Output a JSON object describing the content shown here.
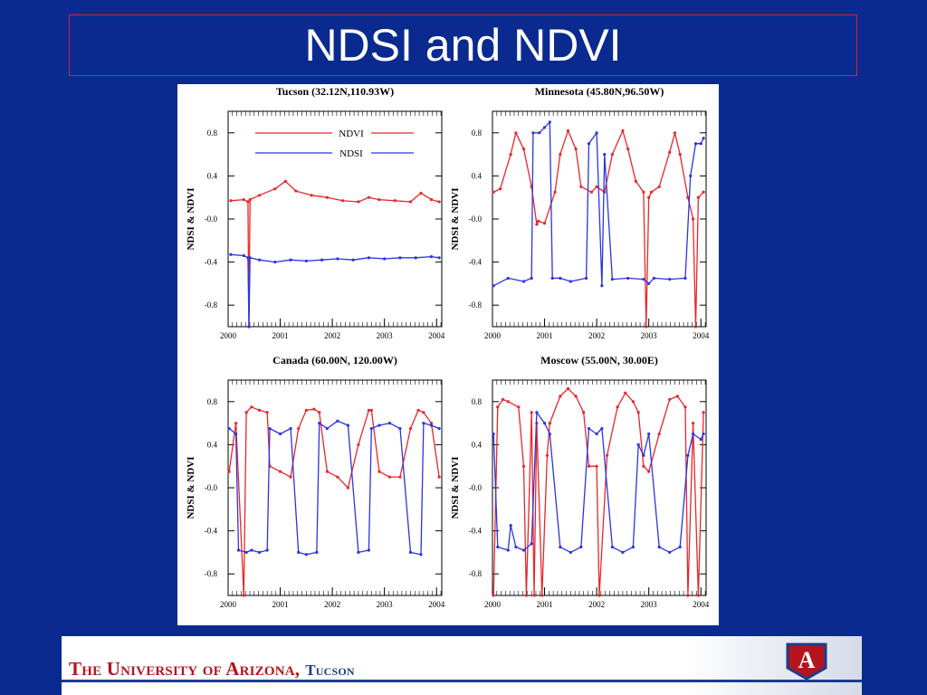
{
  "slide": {
    "title": "NDSI and NDVI",
    "footer_university": "The University of Arizona,",
    "footer_campus": "Tucson",
    "logo_letter": "A"
  },
  "colors": {
    "background": "#0b2a8f",
    "ndvi": "#e8262a",
    "ndsi": "#2a35e0",
    "title_border": "#c8283c",
    "footer_red": "#b4141e",
    "footer_blue": "#1e3c8c"
  },
  "chart_data": [
    {
      "type": "line",
      "title": "Tucson (32.12N,110.93W)",
      "ylabel": "NDSI & NDVI",
      "xlim": [
        2000.0,
        2004.1
      ],
      "ylim": [
        -1.0,
        1.0
      ],
      "yticks": [
        "0.8",
        "0.4",
        "-0.0",
        "-0.4",
        "-0.8"
      ],
      "ytick_values": [
        0.8,
        0.4,
        0.0,
        -0.4,
        -0.8
      ],
      "xticks": [
        "2000",
        "2001",
        "2002",
        "2003",
        "2004"
      ],
      "xtick_values": [
        2000,
        2001,
        2002,
        2003,
        2004
      ],
      "legend": [
        "NDVI",
        "NDSI"
      ],
      "series": [
        {
          "name": "NDVI",
          "x": [
            2000.05,
            2000.3,
            2000.38,
            2000.4,
            2000.42,
            2000.6,
            2000.9,
            2001.1,
            2001.3,
            2001.6,
            2001.9,
            2002.2,
            2002.5,
            2002.7,
            2002.9,
            2003.2,
            2003.5,
            2003.7,
            2003.9,
            2004.05
          ],
          "y": [
            0.17,
            0.18,
            0.16,
            -1.0,
            0.18,
            0.22,
            0.28,
            0.35,
            0.26,
            0.22,
            0.2,
            0.17,
            0.16,
            0.2,
            0.18,
            0.17,
            0.16,
            0.24,
            0.18,
            0.16
          ]
        },
        {
          "name": "NDSI",
          "x": [
            2000.05,
            2000.3,
            2000.38,
            2000.4,
            2000.42,
            2000.6,
            2000.9,
            2001.2,
            2001.5,
            2001.8,
            2002.1,
            2002.4,
            2002.7,
            2003.0,
            2003.3,
            2003.6,
            2003.9,
            2004.05
          ],
          "y": [
            -0.33,
            -0.34,
            -0.36,
            -1.0,
            -0.36,
            -0.38,
            -0.4,
            -0.38,
            -0.39,
            -0.38,
            -0.37,
            -0.38,
            -0.36,
            -0.37,
            -0.36,
            -0.36,
            -0.35,
            -0.36
          ]
        }
      ]
    },
    {
      "type": "line",
      "title": "Minnesota (45.80N,96.50W)",
      "ylabel": "NDSI & NDVI",
      "xlim": [
        2000.0,
        2004.1
      ],
      "ylim": [
        -1.0,
        1.0
      ],
      "yticks": [
        "0.8",
        "0.4",
        "-0.0",
        "-0.4",
        "-0.8"
      ],
      "ytick_values": [
        0.8,
        0.4,
        0.0,
        -0.4,
        -0.8
      ],
      "xticks": [
        "2000",
        "2001",
        "2002",
        "2003",
        "2004"
      ],
      "xtick_values": [
        2000,
        2001,
        2002,
        2003,
        2004
      ],
      "series": [
        {
          "name": "NDVI",
          "x": [
            2000.02,
            2000.15,
            2000.35,
            2000.45,
            2000.6,
            2000.75,
            2000.85,
            2000.88,
            2001.0,
            2001.2,
            2001.3,
            2001.45,
            2001.6,
            2001.7,
            2001.9,
            2002.0,
            2002.15,
            2002.3,
            2002.5,
            2002.6,
            2002.75,
            2002.9,
            2002.95,
            2003.0,
            2003.05,
            2003.2,
            2003.4,
            2003.5,
            2003.6,
            2003.75,
            2003.85,
            2003.9,
            2003.95,
            2004.05
          ],
          "y": [
            0.25,
            0.28,
            0.6,
            0.8,
            0.65,
            0.3,
            -0.05,
            -0.02,
            -0.04,
            0.25,
            0.6,
            0.82,
            0.65,
            0.3,
            0.25,
            0.3,
            0.25,
            0.6,
            0.82,
            0.65,
            0.35,
            0.25,
            -1.0,
            0.2,
            0.25,
            0.3,
            0.62,
            0.8,
            0.6,
            0.2,
            0.0,
            -1.0,
            0.2,
            0.25
          ]
        },
        {
          "name": "NDSI",
          "x": [
            2000.02,
            2000.3,
            2000.6,
            2000.75,
            2000.78,
            2000.9,
            2001.0,
            2001.1,
            2001.15,
            2001.3,
            2001.5,
            2001.8,
            2001.85,
            2002.0,
            2002.1,
            2002.15,
            2002.3,
            2002.6,
            2002.9,
            2003.0,
            2003.1,
            2003.4,
            2003.7,
            2003.8,
            2003.9,
            2004.0,
            2004.05
          ],
          "y": [
            -0.62,
            -0.55,
            -0.58,
            -0.55,
            0.8,
            0.8,
            0.85,
            0.9,
            -0.55,
            -0.55,
            -0.58,
            -0.55,
            0.7,
            0.8,
            -0.62,
            0.6,
            -0.56,
            -0.55,
            -0.56,
            -0.6,
            -0.55,
            -0.56,
            -0.55,
            0.4,
            0.7,
            0.7,
            0.75
          ]
        }
      ]
    },
    {
      "type": "line",
      "title": "Canada (60.00N, 120.00W)",
      "ylabel": "NDSI & NDVI",
      "xlim": [
        2000.0,
        2004.1
      ],
      "ylim": [
        -1.0,
        1.0
      ],
      "yticks": [
        "0.8",
        "0.4",
        "-0.0",
        "-0.4",
        "-0.8"
      ],
      "ytick_values": [
        0.8,
        0.4,
        0.0,
        -0.4,
        -0.8
      ],
      "xticks": [
        "2000",
        "2001",
        "2002",
        "2003",
        "2004"
      ],
      "xtick_values": [
        2000,
        2001,
        2002,
        2003,
        2004
      ],
      "series": [
        {
          "name": "NDVI",
          "x": [
            2000.02,
            2000.15,
            2000.3,
            2000.35,
            2000.45,
            2000.6,
            2000.75,
            2000.8,
            2001.0,
            2001.2,
            2001.35,
            2001.5,
            2001.65,
            2001.75,
            2001.9,
            2002.1,
            2002.3,
            2002.5,
            2002.7,
            2002.75,
            2002.9,
            2003.1,
            2003.3,
            2003.5,
            2003.65,
            2003.75,
            2003.9,
            2004.05
          ],
          "y": [
            0.15,
            0.6,
            -1.0,
            0.7,
            0.75,
            0.72,
            0.7,
            0.2,
            0.15,
            0.1,
            0.55,
            0.72,
            0.73,
            0.7,
            0.15,
            0.1,
            0.0,
            0.4,
            0.72,
            0.72,
            0.15,
            0.1,
            0.1,
            0.55,
            0.72,
            0.7,
            0.6,
            0.1
          ]
        },
        {
          "name": "NDSI",
          "x": [
            2000.02,
            2000.15,
            2000.2,
            2000.35,
            2000.45,
            2000.6,
            2000.75,
            2000.8,
            2001.0,
            2001.2,
            2001.35,
            2001.5,
            2001.7,
            2001.75,
            2001.9,
            2002.1,
            2002.3,
            2002.5,
            2002.7,
            2002.75,
            2002.9,
            2003.1,
            2003.3,
            2003.5,
            2003.7,
            2003.75,
            2003.9,
            2004.05
          ],
          "y": [
            0.55,
            0.5,
            -0.58,
            -0.6,
            -0.58,
            -0.6,
            -0.58,
            0.55,
            0.5,
            0.55,
            -0.6,
            -0.62,
            -0.6,
            0.6,
            0.55,
            0.62,
            0.58,
            -0.6,
            -0.58,
            0.55,
            0.58,
            0.6,
            0.55,
            -0.6,
            -0.62,
            0.6,
            0.58,
            0.55
          ]
        }
      ]
    },
    {
      "type": "line",
      "title": "Moscow (55.00N, 30.00E)",
      "ylabel": "NDSI & NDVI",
      "xlim": [
        2000.0,
        2004.1
      ],
      "ylim": [
        -1.0,
        1.0
      ],
      "yticks": [
        "0.8",
        "0.4",
        "-0.0",
        "-0.4",
        "-0.8"
      ],
      "ytick_values": [
        0.8,
        0.4,
        0.0,
        -0.4,
        -0.8
      ],
      "xticks": [
        "2000",
        "2001",
        "2002",
        "2003",
        "2004"
      ],
      "xtick_values": [
        2000,
        2001,
        2002,
        2003,
        2004
      ],
      "series": [
        {
          "name": "NDVI",
          "x": [
            2000.02,
            2000.1,
            2000.2,
            2000.3,
            2000.5,
            2000.6,
            2000.65,
            2000.75,
            2000.8,
            2000.85,
            2000.95,
            2001.05,
            2001.1,
            2001.3,
            2001.45,
            2001.6,
            2001.75,
            2001.85,
            2002.0,
            2002.05,
            2002.2,
            2002.4,
            2002.55,
            2002.7,
            2002.8,
            2002.9,
            2003.0,
            2003.2,
            2003.4,
            2003.55,
            2003.7,
            2003.75,
            2003.85,
            2003.95,
            2004.05
          ],
          "y": [
            -1.0,
            0.75,
            0.82,
            0.8,
            0.75,
            0.2,
            -1.0,
            0.7,
            -1.0,
            0.6,
            -1.0,
            0.3,
            0.6,
            0.85,
            0.92,
            0.85,
            0.7,
            0.2,
            0.2,
            -1.0,
            0.3,
            0.75,
            0.88,
            0.8,
            0.7,
            0.2,
            0.15,
            0.5,
            0.82,
            0.85,
            0.75,
            -1.0,
            0.6,
            -1.0,
            0.7
          ]
        },
        {
          "name": "NDSI",
          "x": [
            2000.02,
            2000.1,
            2000.3,
            2000.35,
            2000.45,
            2000.6,
            2000.75,
            2000.85,
            2001.0,
            2001.1,
            2001.3,
            2001.5,
            2001.7,
            2001.85,
            2002.0,
            2002.1,
            2002.3,
            2002.5,
            2002.7,
            2002.8,
            2002.9,
            2003.0,
            2003.2,
            2003.4,
            2003.6,
            2003.75,
            2003.85,
            2004.0,
            2004.05
          ],
          "y": [
            0.5,
            -0.55,
            -0.58,
            -0.35,
            -0.55,
            -0.58,
            -0.52,
            0.7,
            0.6,
            0.5,
            -0.55,
            -0.6,
            -0.55,
            0.55,
            0.5,
            0.55,
            -0.55,
            -0.6,
            -0.55,
            0.4,
            0.3,
            0.5,
            -0.55,
            -0.6,
            -0.55,
            0.3,
            0.5,
            0.45,
            0.5
          ]
        }
      ]
    }
  ]
}
